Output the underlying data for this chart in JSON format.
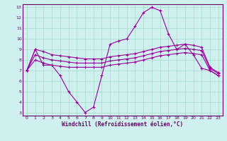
{
  "xlabel": "Windchill (Refroidissement éolien,°C)",
  "background_color": "#cff0ee",
  "grid_color": "#aaddcc",
  "line_color": "#990099",
  "x_hours": [
    0,
    1,
    2,
    3,
    4,
    5,
    6,
    7,
    8,
    9,
    10,
    11,
    12,
    13,
    14,
    15,
    16,
    17,
    18,
    19,
    20,
    21,
    22,
    23
  ],
  "line1": [
    7.0,
    9.0,
    7.5,
    7.5,
    6.5,
    5.0,
    4.0,
    3.0,
    3.5,
    6.5,
    9.5,
    9.8,
    10.0,
    11.2,
    12.5,
    13.0,
    12.7,
    10.5,
    9.0,
    9.5,
    8.5,
    7.2,
    7.0,
    6.5
  ],
  "line2": [
    7.0,
    9.0,
    8.8,
    8.5,
    8.4,
    8.3,
    8.2,
    8.1,
    8.1,
    8.1,
    8.3,
    8.4,
    8.5,
    8.6,
    8.8,
    9.0,
    9.2,
    9.3,
    9.4,
    9.5,
    9.4,
    9.2,
    7.3,
    6.8
  ],
  "line3": [
    7.0,
    8.5,
    8.2,
    8.0,
    7.9,
    7.8,
    7.7,
    7.7,
    7.7,
    7.7,
    7.9,
    8.0,
    8.1,
    8.2,
    8.4,
    8.6,
    8.8,
    8.9,
    9.0,
    9.1,
    9.0,
    8.9,
    7.2,
    6.7
  ],
  "line4": [
    7.0,
    8.0,
    7.7,
    7.5,
    7.4,
    7.3,
    7.3,
    7.3,
    7.3,
    7.3,
    7.5,
    7.6,
    7.7,
    7.8,
    8.0,
    8.2,
    8.4,
    8.5,
    8.6,
    8.7,
    8.6,
    8.5,
    7.0,
    6.5
  ],
  "ylim": [
    3,
    13
  ],
  "xlim": [
    -0.5,
    23.5
  ],
  "yticks": [
    3,
    4,
    5,
    6,
    7,
    8,
    9,
    10,
    11,
    12,
    13
  ],
  "xticks": [
    0,
    1,
    2,
    3,
    4,
    5,
    6,
    7,
    8,
    9,
    10,
    11,
    12,
    13,
    14,
    15,
    16,
    17,
    18,
    19,
    20,
    21,
    22,
    23
  ],
  "border_color": "#660066"
}
